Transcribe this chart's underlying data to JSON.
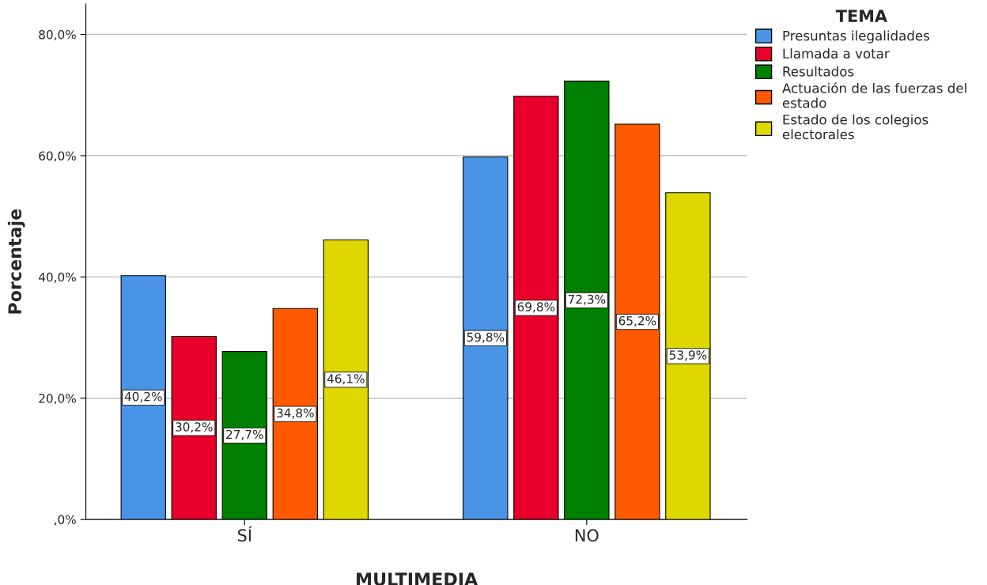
{
  "chart_data": {
    "type": "bar",
    "xlabel": "MULTIMEDIA",
    "ylabel": "Porcentaje",
    "legend_title": "TEMA",
    "categories": [
      "SÍ",
      "NO"
    ],
    "series": [
      {
        "name": "Presuntas ilegalidades",
        "color": "#4a94e8",
        "values": [
          40.2,
          59.8
        ],
        "value_labels": [
          "40,2%",
          "59,8%"
        ]
      },
      {
        "name": "Llamada a votar",
        "color": "#e8002a",
        "values": [
          30.2,
          69.8
        ],
        "value_labels": [
          "30,2%",
          "69,8%"
        ]
      },
      {
        "name": "Resultados",
        "color": "#008000",
        "values": [
          27.7,
          72.3
        ],
        "value_labels": [
          "27,7%",
          "72,3%"
        ]
      },
      {
        "name": "Actuación de las fuerzas del estado",
        "color": "#ff5a00",
        "values": [
          34.8,
          65.2
        ],
        "value_labels": [
          "34,8%",
          "65,2%"
        ]
      },
      {
        "name": "Estado de los colegios electorales",
        "color": "#dfd800",
        "values": [
          46.1,
          53.9
        ],
        "value_labels": [
          "46,1%",
          "53,9%"
        ]
      }
    ],
    "ylim": [
      0,
      85
    ],
    "yticks": [
      {
        "value": 0,
        "label": ",0%"
      },
      {
        "value": 20,
        "label": "20,0%"
      },
      {
        "value": 40,
        "label": "40,0%"
      },
      {
        "value": 60,
        "label": "60,0%"
      },
      {
        "value": 80,
        "label": "80,0%"
      }
    ],
    "grid": "y",
    "legend": "top right"
  }
}
